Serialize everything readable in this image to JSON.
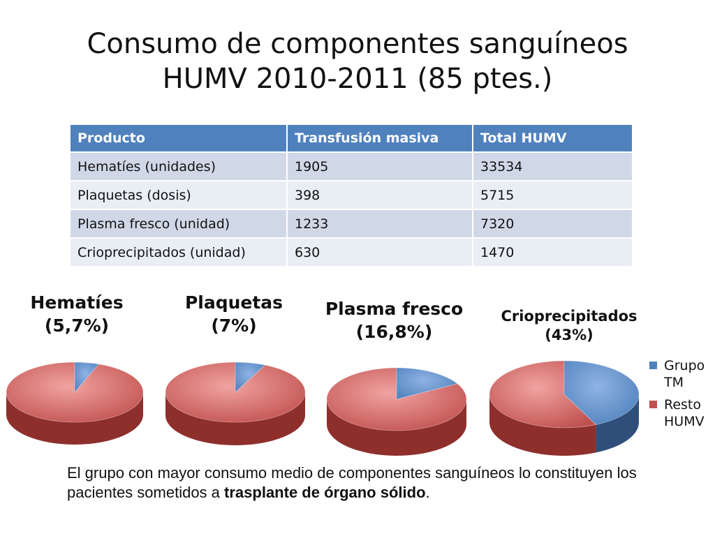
{
  "title": {
    "line1": "Consumo de componentes sanguíneos",
    "line2": "HUMV 2010-2011 (85 ptes.)"
  },
  "table": {
    "headers": [
      "Producto",
      "Transfusión masiva",
      "Total HUMV"
    ],
    "rows": [
      [
        "Hematíes (unidades)",
        "1905",
        "33534"
      ],
      [
        "Plaquetas (dosis)",
        "398",
        "5715"
      ],
      [
        "Plasma fresco (unidad)",
        "1233",
        "7320"
      ],
      [
        "Crioprecipitados (unidad)",
        "630",
        "1470"
      ]
    ]
  },
  "colors": {
    "table_header": "#4f81bd",
    "group_tm": "#4f81bd",
    "resto_humv": "#c0504d"
  },
  "chart_data": [
    {
      "type": "pie",
      "title": "Hematíes",
      "subtitle": "(5,7%)",
      "categories": [
        "Grupo TM",
        "Resto HUMV"
      ],
      "values": [
        5.7,
        94.3
      ]
    },
    {
      "type": "pie",
      "title": "Plaquetas",
      "subtitle": "(7%)",
      "categories": [
        "Grupo TM",
        "Resto HUMV"
      ],
      "values": [
        7,
        93
      ]
    },
    {
      "type": "pie",
      "title": "Plasma fresco",
      "subtitle": "(16,8%)",
      "categories": [
        "Grupo TM",
        "Resto HUMV"
      ],
      "values": [
        16.8,
        83.2
      ]
    },
    {
      "type": "pie",
      "title": "Crioprecipitados",
      "subtitle": "(43%)",
      "categories": [
        "Grupo TM",
        "Resto HUMV"
      ],
      "values": [
        43,
        57
      ]
    }
  ],
  "legend": {
    "placement": "right",
    "items": [
      {
        "label": "Grupo TM",
        "color": "#4f81bd"
      },
      {
        "label": "Resto HUMV",
        "color": "#c0504d"
      }
    ]
  },
  "footer": {
    "text_before": "El grupo con mayor consumo medio de componentes sanguíneos lo constituyen los pacientes sometidos a ",
    "bold": "trasplante de órgano sólido",
    "text_after": "."
  }
}
